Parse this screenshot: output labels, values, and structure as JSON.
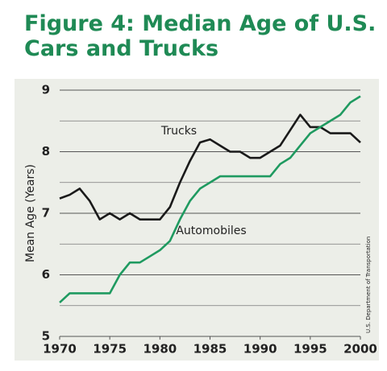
{
  "chart_data": {
    "type": "line",
    "title": "Figure 4: Median Age of U.S. Cars and Trucks",
    "y_label": "Mean Age (Years)",
    "source": "U.S. Department of Transportation",
    "x": [
      1970,
      1971,
      1972,
      1973,
      1974,
      1975,
      1976,
      1977,
      1978,
      1979,
      1980,
      1981,
      1982,
      1983,
      1984,
      1985,
      1986,
      1987,
      1988,
      1989,
      1990,
      1991,
      1992,
      1993,
      1994,
      1995,
      1996,
      1997,
      1998,
      1999,
      2000
    ],
    "series": [
      {
        "name": "Trucks",
        "color": "#1a1a1a",
        "values": [
          7.24,
          7.3,
          7.4,
          7.2,
          6.9,
          7.0,
          6.9,
          7.0,
          6.9,
          6.9,
          6.9,
          7.1,
          7.5,
          7.85,
          8.15,
          8.2,
          8.1,
          8.0,
          8.0,
          7.9,
          7.9,
          8.0,
          8.1,
          8.35,
          8.6,
          8.4,
          8.4,
          8.3,
          8.3,
          8.3,
          8.15
        ]
      },
      {
        "name": "Automobiles",
        "color": "#1f9a60",
        "values": [
          5.55,
          5.7,
          5.7,
          5.7,
          5.7,
          5.7,
          6.0,
          6.2,
          6.2,
          6.3,
          6.4,
          6.55,
          6.9,
          7.2,
          7.4,
          7.5,
          7.6,
          7.6,
          7.6,
          7.6,
          7.6,
          7.6,
          7.8,
          7.9,
          8.1,
          8.3,
          8.4,
          8.5,
          8.6,
          8.8,
          8.9
        ]
      }
    ],
    "xlim": [
      1970,
      2000
    ],
    "xticks": [
      1970,
      1975,
      1980,
      1985,
      1990,
      1995,
      2000
    ],
    "ylim": [
      5,
      9
    ],
    "yticks": [
      5,
      6,
      7,
      8,
      9
    ],
    "minor_yticks": [
      5.5,
      6.5,
      7.5,
      8.5
    ],
    "grid": true
  }
}
